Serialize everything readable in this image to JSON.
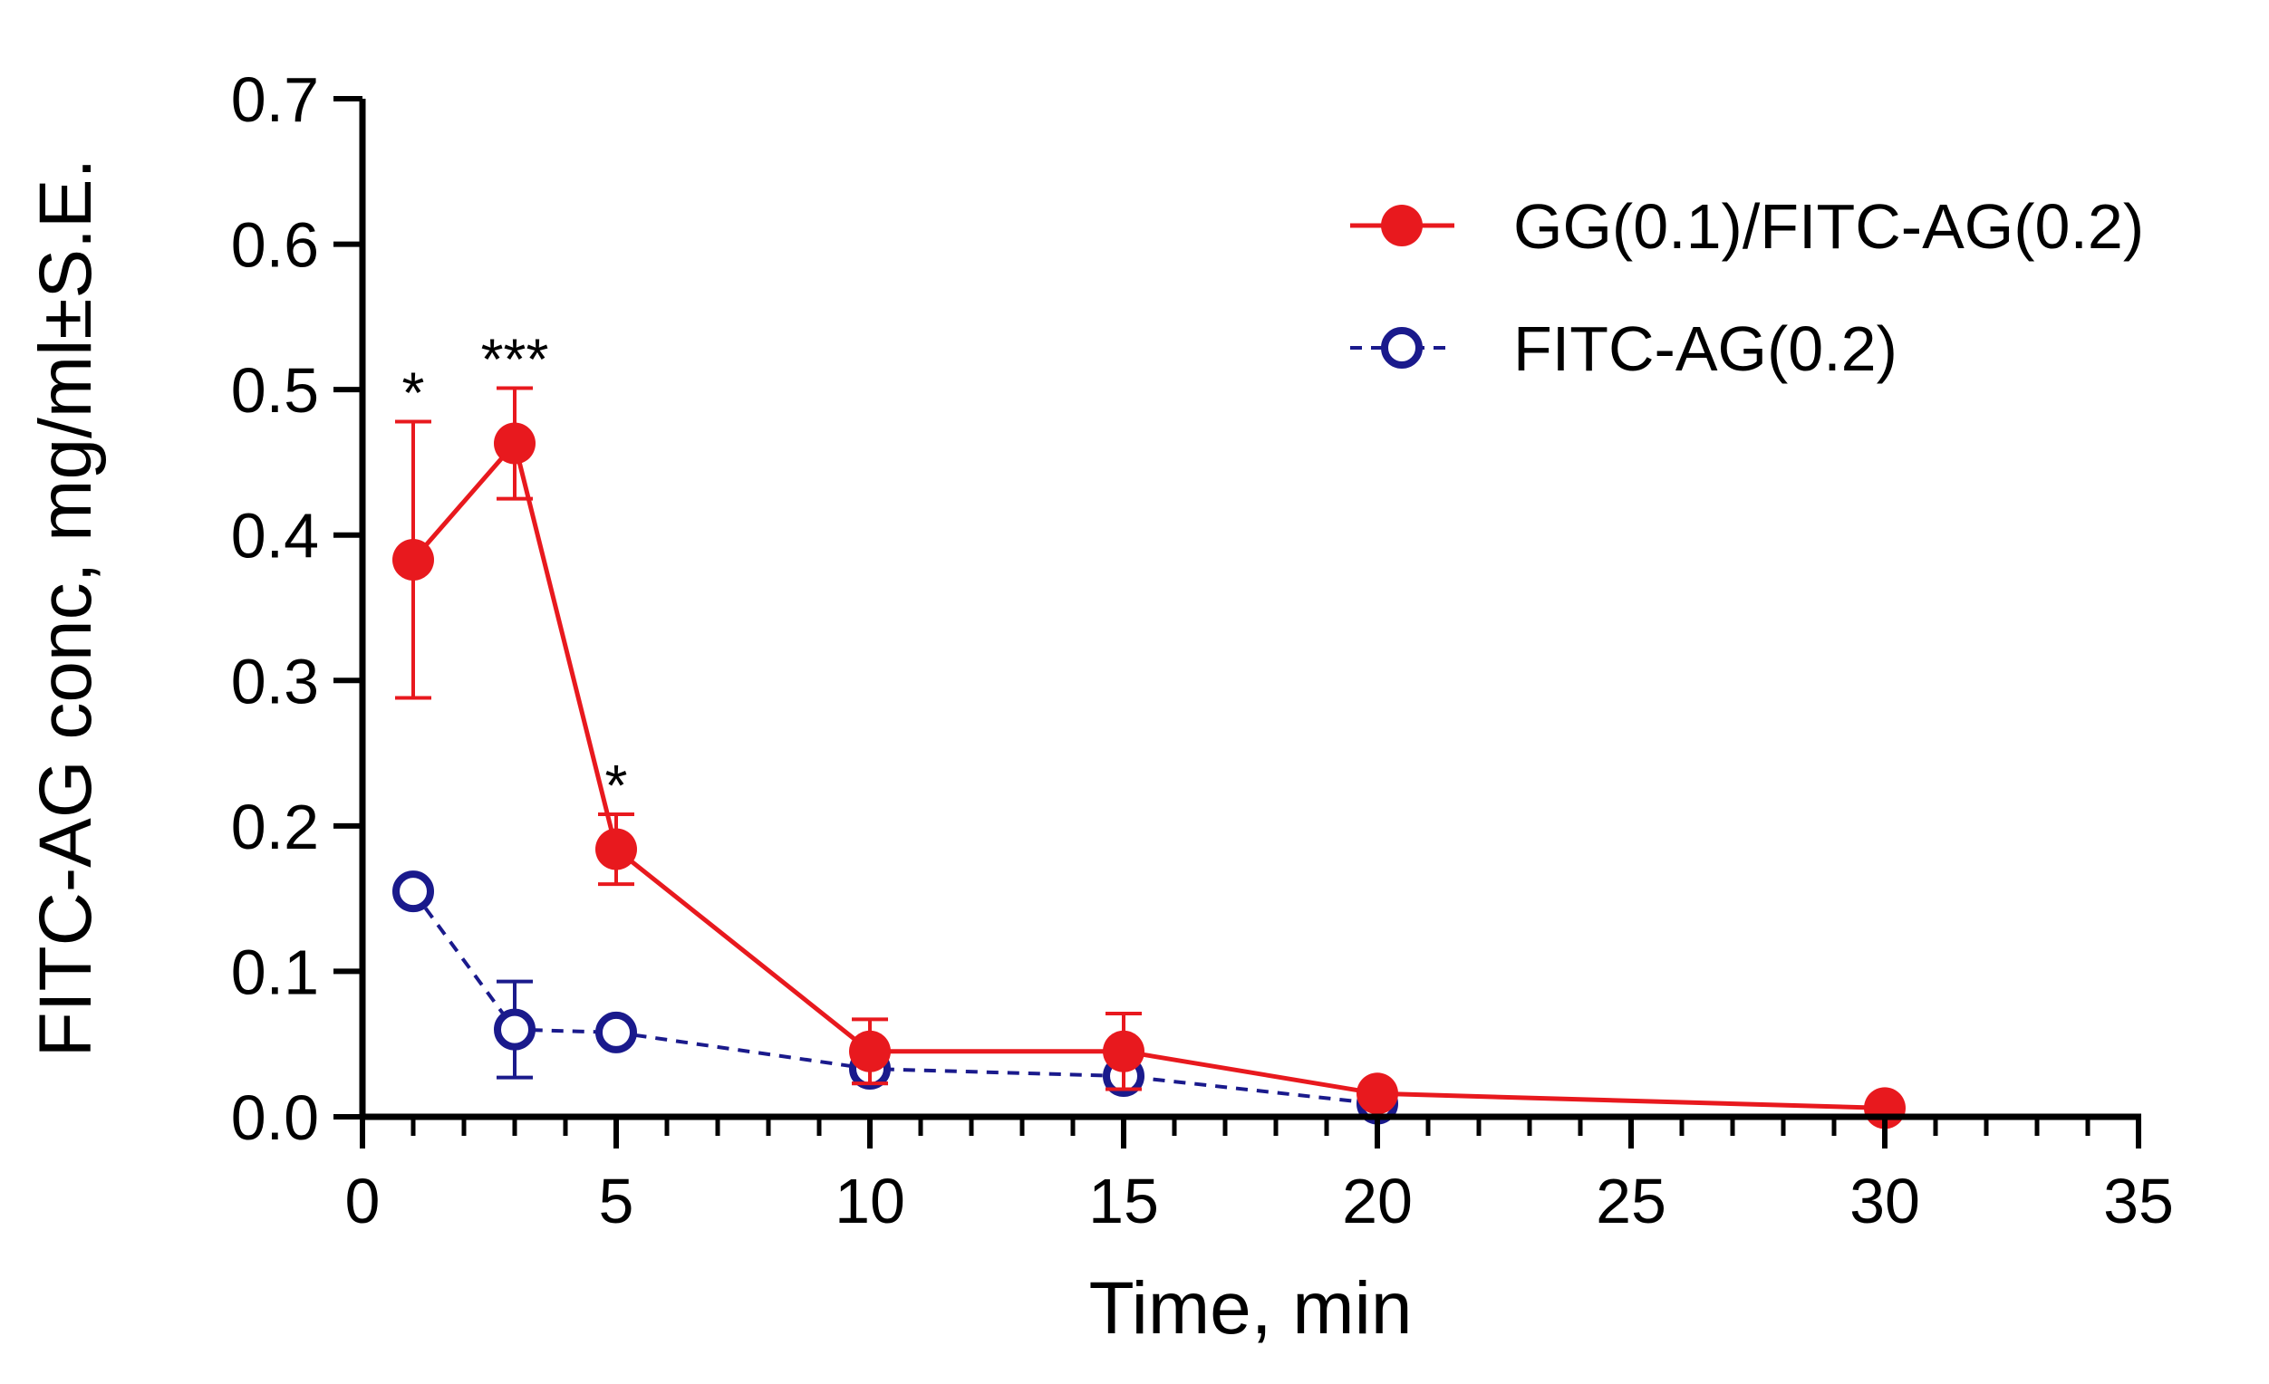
{
  "chart_data": {
    "type": "line",
    "title": "",
    "xlabel": "Time, min",
    "ylabel": "FITC-AG conc, mg/ml±S.E.",
    "xlim": [
      0,
      35
    ],
    "ylim": [
      0,
      0.7
    ],
    "x_ticks": [
      "0",
      "5",
      "10",
      "15",
      "20",
      "25",
      "30",
      "35"
    ],
    "y_ticks": [
      "0.0",
      "0.1",
      "0.2",
      "0.3",
      "0.4",
      "0.5",
      "0.6",
      "0.7"
    ],
    "legend_position": "top-right",
    "series": [
      {
        "name": "GG(0.1)/FITC-AG(0.2)",
        "color": "#e8191e",
        "marker": "filled-circle",
        "line_style": "solid",
        "x": [
          1,
          3,
          5,
          10,
          15,
          20,
          30
        ],
        "values": [
          0.383,
          0.463,
          0.184,
          0.045,
          0.045,
          0.016,
          0.006
        ],
        "errors": [
          0.095,
          0.038,
          0.024,
          0.022,
          0.026,
          0.004,
          0.002
        ]
      },
      {
        "name": "FITC-AG(0.2)",
        "color": "#1a1a8c",
        "marker": "open-circle",
        "line_style": "dashed",
        "x": [
          1,
          3,
          5,
          10,
          15,
          20
        ],
        "values": [
          0.155,
          0.06,
          0.058,
          0.033,
          0.028,
          0.009
        ],
        "errors": [
          0.004,
          0.033,
          0.004,
          0.01,
          0.006,
          0.004
        ]
      }
    ],
    "annotations": [
      {
        "x": 1,
        "y": 0.478,
        "text": "*"
      },
      {
        "x": 3,
        "y": 0.501,
        "text": "***"
      },
      {
        "x": 5,
        "y": 0.208,
        "text": "*"
      }
    ]
  }
}
